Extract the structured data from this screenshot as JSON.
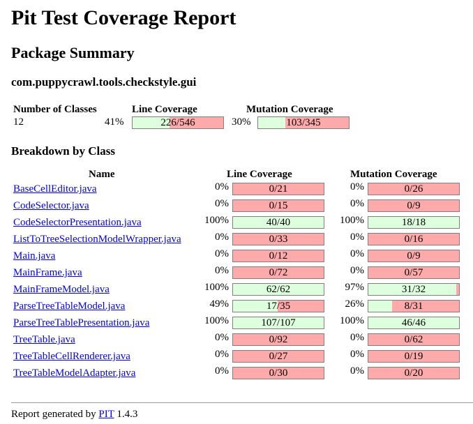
{
  "title": "Pit Test Coverage Report",
  "package_summary_heading": "Package Summary",
  "package_name": "com.puppycrawl.tools.checkstyle.gui",
  "summary": {
    "headers": {
      "classes": "Number of Classes",
      "line": "Line Coverage",
      "mutation": "Mutation Coverage"
    },
    "classes": "12",
    "line_pct": "41%",
    "line_ratio": "226/546",
    "line_fraction": 0.41,
    "mutation_pct": "30%",
    "mutation_ratio": "103/345",
    "mutation_fraction": 0.3
  },
  "breakdown_heading": "Breakdown by Class",
  "breakdown_headers": {
    "name": "Name",
    "line": "Line Coverage",
    "mutation": "Mutation Coverage"
  },
  "classes": [
    {
      "name": "BaseCellEditor.java",
      "line_pct": "0%",
      "line_ratio": "0/21",
      "line_fraction": 0.0,
      "mut_pct": "0%",
      "mut_ratio": "0/26",
      "mut_fraction": 0.0
    },
    {
      "name": "CodeSelector.java",
      "line_pct": "0%",
      "line_ratio": "0/15",
      "line_fraction": 0.0,
      "mut_pct": "0%",
      "mut_ratio": "0/9",
      "mut_fraction": 0.0
    },
    {
      "name": "CodeSelectorPresentation.java",
      "line_pct": "100%",
      "line_ratio": "40/40",
      "line_fraction": 1.0,
      "mut_pct": "100%",
      "mut_ratio": "18/18",
      "mut_fraction": 1.0
    },
    {
      "name": "ListToTreeSelectionModelWrapper.java",
      "line_pct": "0%",
      "line_ratio": "0/33",
      "line_fraction": 0.0,
      "mut_pct": "0%",
      "mut_ratio": "0/16",
      "mut_fraction": 0.0
    },
    {
      "name": "Main.java",
      "line_pct": "0%",
      "line_ratio": "0/12",
      "line_fraction": 0.0,
      "mut_pct": "0%",
      "mut_ratio": "0/9",
      "mut_fraction": 0.0
    },
    {
      "name": "MainFrame.java",
      "line_pct": "0%",
      "line_ratio": "0/72",
      "line_fraction": 0.0,
      "mut_pct": "0%",
      "mut_ratio": "0/57",
      "mut_fraction": 0.0
    },
    {
      "name": "MainFrameModel.java",
      "line_pct": "100%",
      "line_ratio": "62/62",
      "line_fraction": 1.0,
      "mut_pct": "97%",
      "mut_ratio": "31/32",
      "mut_fraction": 0.97
    },
    {
      "name": "ParseTreeTableModel.java",
      "line_pct": "49%",
      "line_ratio": "17/35",
      "line_fraction": 0.49,
      "mut_pct": "26%",
      "mut_ratio": "8/31",
      "mut_fraction": 0.26
    },
    {
      "name": "ParseTreeTablePresentation.java",
      "line_pct": "100%",
      "line_ratio": "107/107",
      "line_fraction": 1.0,
      "mut_pct": "100%",
      "mut_ratio": "46/46",
      "mut_fraction": 1.0
    },
    {
      "name": "TreeTable.java",
      "line_pct": "0%",
      "line_ratio": "0/92",
      "line_fraction": 0.0,
      "mut_pct": "0%",
      "mut_ratio": "0/62",
      "mut_fraction": 0.0
    },
    {
      "name": "TreeTableCellRenderer.java",
      "line_pct": "0%",
      "line_ratio": "0/27",
      "line_fraction": 0.0,
      "mut_pct": "0%",
      "mut_ratio": "0/19",
      "mut_fraction": 0.0
    },
    {
      "name": "TreeTableModelAdapter.java",
      "line_pct": "0%",
      "line_ratio": "0/30",
      "line_fraction": 0.0,
      "mut_pct": "0%",
      "mut_ratio": "0/20",
      "mut_fraction": 0.0
    }
  ],
  "footer": {
    "prefix": "Report generated by",
    "link": "PIT",
    "version": "1.4.3"
  },
  "colors": {
    "covered": "#ddffdd",
    "uncovered": "#ffaaaa",
    "link": "#0000ee"
  }
}
